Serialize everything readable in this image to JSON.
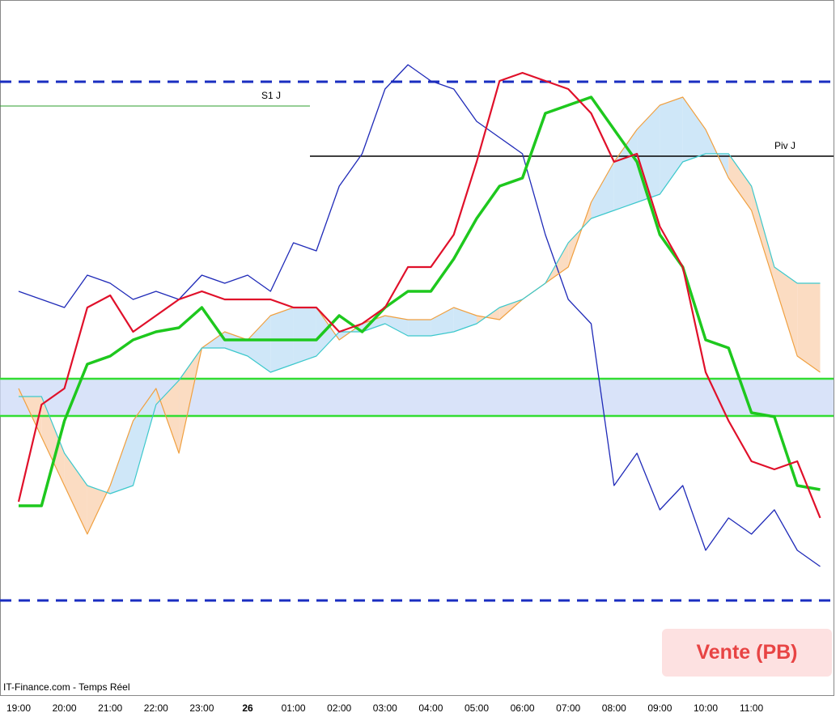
{
  "chart_data": {
    "type": "line",
    "categories": [
      "19:00",
      null,
      "20:00",
      null,
      "21:00",
      null,
      "22:00",
      null,
      "23:00",
      null,
      "26",
      null,
      "01:00",
      null,
      "02:00",
      null,
      "03:00",
      null,
      "04:00",
      null,
      "05:00",
      null,
      "06:00",
      null,
      "07:00",
      null,
      "08:00",
      null,
      "09:00",
      null,
      "10:00",
      null,
      "11:00",
      null,
      null,
      null
    ],
    "ylim": [
      0,
      860
    ],
    "series": [
      {
        "color": "#1f2ab8",
        "width": 1.3,
        "values": [
          500,
          490,
          480,
          520,
          510,
          490,
          500,
          490,
          520,
          510,
          520,
          500,
          560,
          550,
          630,
          670,
          750,
          780,
          760,
          750,
          710,
          690,
          670,
          570,
          490,
          460,
          260,
          300,
          230,
          260,
          180,
          220,
          200,
          230,
          180,
          160
        ]
      },
      {
        "color": "#f0a040",
        "width": 1.2,
        "cloud": "a",
        "values": [
          380,
          320,
          260,
          200,
          260,
          340,
          380,
          300,
          430,
          450,
          440,
          470,
          480,
          480,
          440,
          460,
          470,
          465,
          465,
          480,
          470,
          465,
          490,
          510,
          530,
          610,
          660,
          700,
          730,
          740,
          700,
          640,
          600,
          510,
          420,
          400
        ]
      },
      {
        "color": "#3cc8cc",
        "width": 1.2,
        "cloud": "b",
        "values": [
          370,
          370,
          300,
          260,
          250,
          260,
          360,
          390,
          430,
          430,
          420,
          400,
          410,
          420,
          450,
          450,
          460,
          445,
          445,
          450,
          460,
          480,
          490,
          510,
          560,
          590,
          600,
          610,
          620,
          660,
          670,
          670,
          630,
          530,
          510,
          510
        ]
      },
      {
        "color": "#1ec81e",
        "width": 3.5,
        "values": [
          235,
          235,
          340,
          410,
          420,
          440,
          450,
          455,
          480,
          440,
          440,
          440,
          440,
          440,
          470,
          450,
          480,
          500,
          500,
          540,
          590,
          630,
          640,
          720,
          730,
          740,
          700,
          660,
          570,
          530,
          440,
          430,
          350,
          345,
          260,
          255
        ]
      },
      {
        "color": "#e0102a",
        "width": 2.2,
        "values": [
          240,
          360,
          380,
          480,
          495,
          450,
          470,
          490,
          500,
          490,
          490,
          490,
          480,
          480,
          450,
          460,
          480,
          530,
          530,
          570,
          660,
          760,
          770,
          760,
          750,
          720,
          660,
          670,
          580,
          530,
          400,
          340,
          290,
          280,
          290,
          220
        ]
      }
    ],
    "levels": [
      {
        "label": "S1 J",
        "value": 729,
        "color": "#2e9e2e"
      },
      {
        "label": "Piv J",
        "value": 667,
        "color": "#000000"
      }
    ],
    "dashed_levels": {
      "color": "#1a2ec0",
      "values": [
        759,
        118
      ]
    },
    "band": {
      "color": "#33dd33",
      "values": [
        392,
        346
      ]
    },
    "source": "IT-Finance.com - Temps Réel",
    "signal": "Vente (PB)"
  }
}
